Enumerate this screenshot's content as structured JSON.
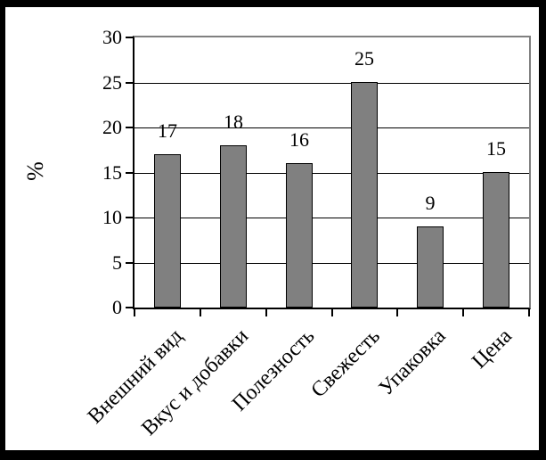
{
  "chart_data": {
    "type": "bar",
    "title": "",
    "xlabel": "",
    "ylabel": "%",
    "categories": [
      "Внешний вид",
      "Вкус и добавки",
      "Полезность",
      "Свежесть",
      "Упаковка",
      "Цена"
    ],
    "values": [
      17,
      18,
      16,
      25,
      9,
      15
    ],
    "ylim": [
      0,
      30
    ],
    "yticks": [
      0,
      5,
      10,
      15,
      20,
      25,
      30
    ],
    "grid": true,
    "legend_position": "none",
    "show_value_labels": true,
    "colors": {
      "bar_fill": "#808080",
      "bar_border": "#000000",
      "gridline": "#000000",
      "plot_border": "#808080",
      "axis_line": "#000000",
      "frame_border": "#000000",
      "background": "#ffffff",
      "text": "#000000"
    }
  }
}
